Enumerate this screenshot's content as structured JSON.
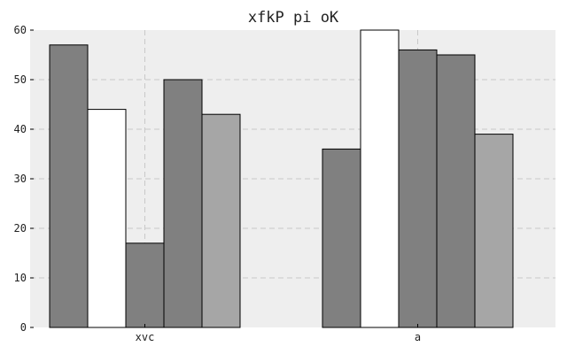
{
  "chart_data": {
    "type": "bar",
    "title": "xfkP pi oK",
    "xlabel": "",
    "ylabel": "",
    "categories": [
      "xvc",
      "a"
    ],
    "series": [
      {
        "values": [
          57,
          36
        ],
        "color": "#808080"
      },
      {
        "values": [
          44,
          60
        ],
        "color": "#ffffff"
      },
      {
        "values": [
          17,
          56
        ],
        "color": "#808080"
      },
      {
        "values": [
          50,
          55
        ],
        "color": "#808080"
      },
      {
        "values": [
          43,
          39
        ],
        "color": "#a6a6a6"
      }
    ],
    "ylim": [
      0,
      60
    ],
    "yticks": [
      "0",
      "10",
      "20",
      "30",
      "40",
      "50",
      "60"
    ],
    "grid": true,
    "legend": "none",
    "colors": {
      "background": "#eeeeee",
      "grid": "#c8c8c8",
      "bar_edge": "#000000"
    }
  }
}
